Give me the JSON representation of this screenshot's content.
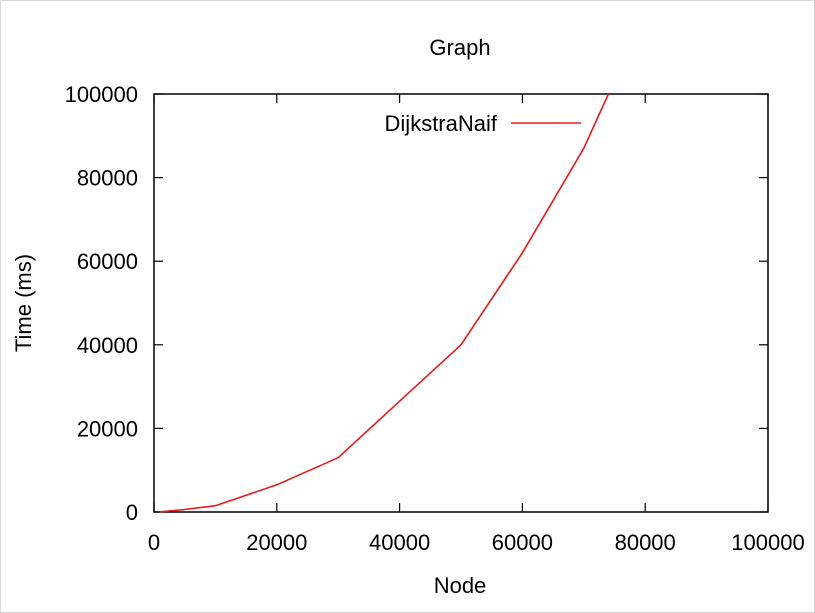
{
  "chart_data": {
    "type": "line",
    "title": "Graph",
    "xlabel": "Node",
    "ylabel": "Time (ms)",
    "xlim": [
      0,
      100000
    ],
    "ylim": [
      0,
      100000
    ],
    "x_ticks": [
      0,
      20000,
      40000,
      60000,
      80000,
      100000
    ],
    "y_ticks": [
      0,
      20000,
      40000,
      60000,
      80000,
      100000
    ],
    "x_tick_labels": [
      "0",
      "20000",
      "40000",
      "60000",
      "80000",
      "100000"
    ],
    "y_tick_labels": [
      "0",
      "20000",
      "40000",
      "60000",
      "80000",
      "100000"
    ],
    "grid": false,
    "legend_position": "top-center",
    "series": [
      {
        "name": "DijkstraNaif",
        "color": "#e41a1c",
        "x": [
          1000,
          5000,
          10000,
          20000,
          30000,
          40000,
          50000,
          60000,
          70000,
          74000
        ],
        "y": [
          50,
          600,
          1500,
          6500,
          13000,
          26500,
          40000,
          62000,
          87000,
          100000
        ]
      }
    ]
  }
}
